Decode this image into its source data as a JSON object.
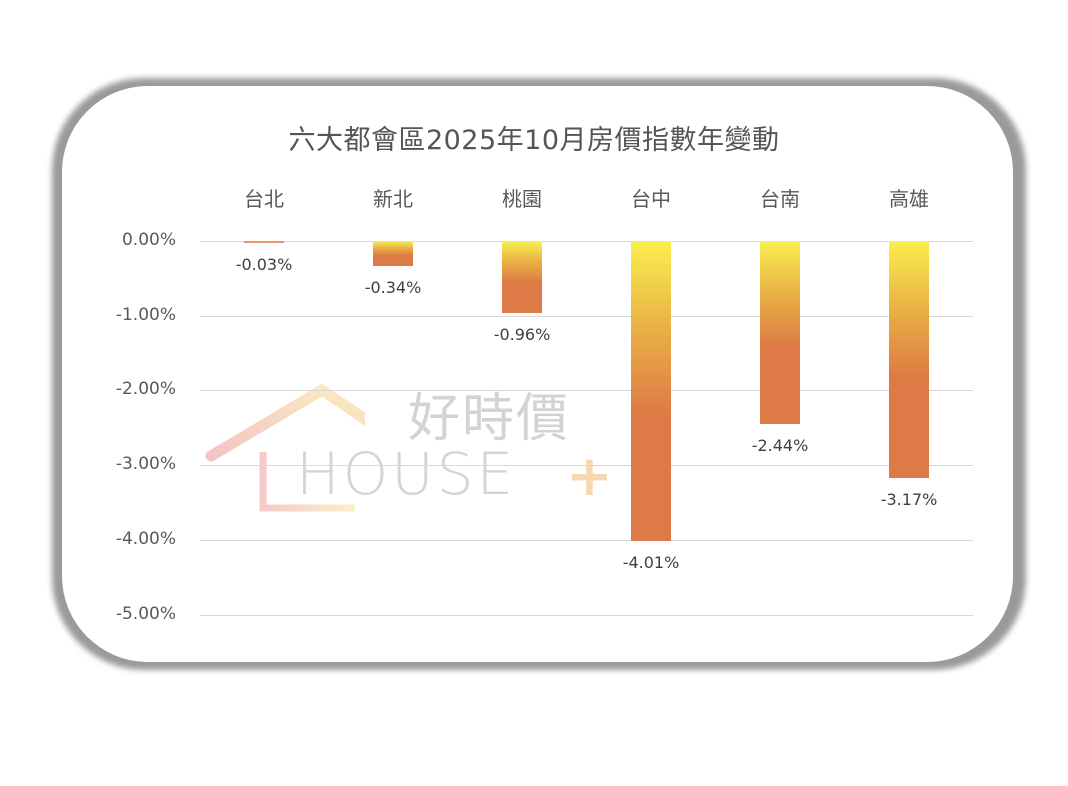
{
  "chart_data": {
    "type": "bar",
    "title": "六大都會區2025年10月房價指數年變動",
    "categories": [
      "台北",
      "新北",
      "桃園",
      "台中",
      "台南",
      "高雄"
    ],
    "values": [
      -0.03,
      -0.34,
      -0.96,
      -4.01,
      -2.44,
      -3.17
    ],
    "value_labels": [
      "-0.03%",
      "-0.34%",
      "-0.96%",
      "-4.01%",
      "-2.44%",
      "-3.17%"
    ],
    "xlabel": "",
    "ylabel": "",
    "ylim": [
      -5.0,
      0.0
    ],
    "yticks": [
      "0.00%",
      "-1.00%",
      "-2.00%",
      "-3.00%",
      "-4.00%",
      "-5.00%"
    ],
    "grid": true,
    "legend": null,
    "category_axis_position": "top",
    "bar_gradient": {
      "top": "#F9EF4F",
      "bottom": "#DD7A45"
    }
  },
  "watermark": {
    "chinese": "好時價",
    "english": "HOUSE",
    "plus": "+"
  }
}
